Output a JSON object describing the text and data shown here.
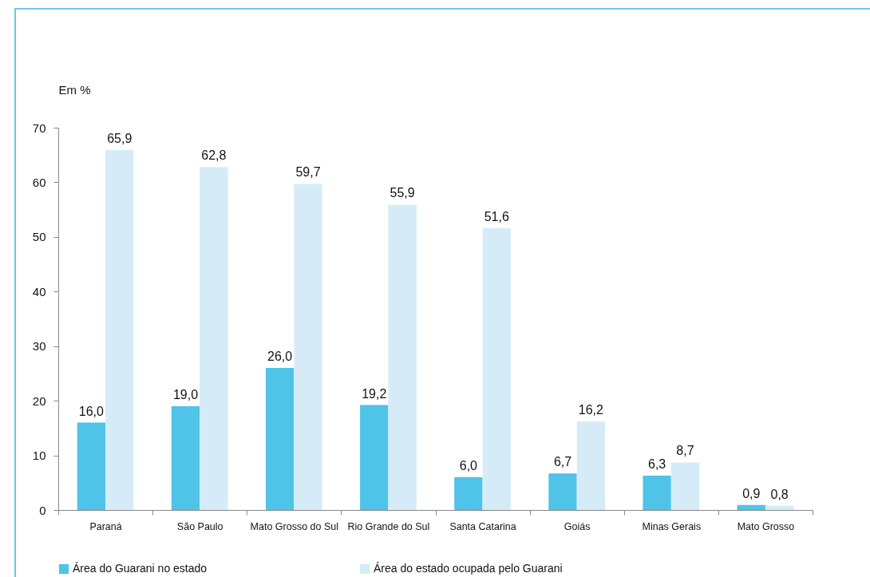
{
  "chart_data": {
    "type": "bar",
    "ylabel": "Em %",
    "categories": [
      "Paraná",
      "São Paulo",
      "Mato Grosso do Sul",
      "Rio Grande do Sul",
      "Santa Catarina",
      "Goiás",
      "Minas Gerais",
      "Mato Grosso"
    ],
    "series": [
      {
        "name": "Área do Guarani no estado",
        "color": "#4fc3e8",
        "values": [
          16.0,
          19.0,
          26.0,
          19.2,
          6.0,
          6.7,
          6.3,
          0.9
        ],
        "value_labels": [
          "16,0",
          "19,0",
          "26,0",
          "19,2",
          "6,0",
          "6,7",
          "6,3",
          "0,9"
        ]
      },
      {
        "name": "Área do estado ocupada pelo Guarani",
        "color": "#d5ecf8",
        "values": [
          65.9,
          62.8,
          59.7,
          55.9,
          51.6,
          16.2,
          8.7,
          0.8
        ],
        "value_labels": [
          "65,9",
          "62,8",
          "59,7",
          "55,9",
          "51,6",
          "16,2",
          "8,7",
          "0,8"
        ]
      }
    ],
    "ylim": [
      0,
      70
    ],
    "yticks": [
      0,
      10,
      20,
      30,
      40,
      50,
      60,
      70
    ],
    "grid": false,
    "legend": "bottom"
  }
}
